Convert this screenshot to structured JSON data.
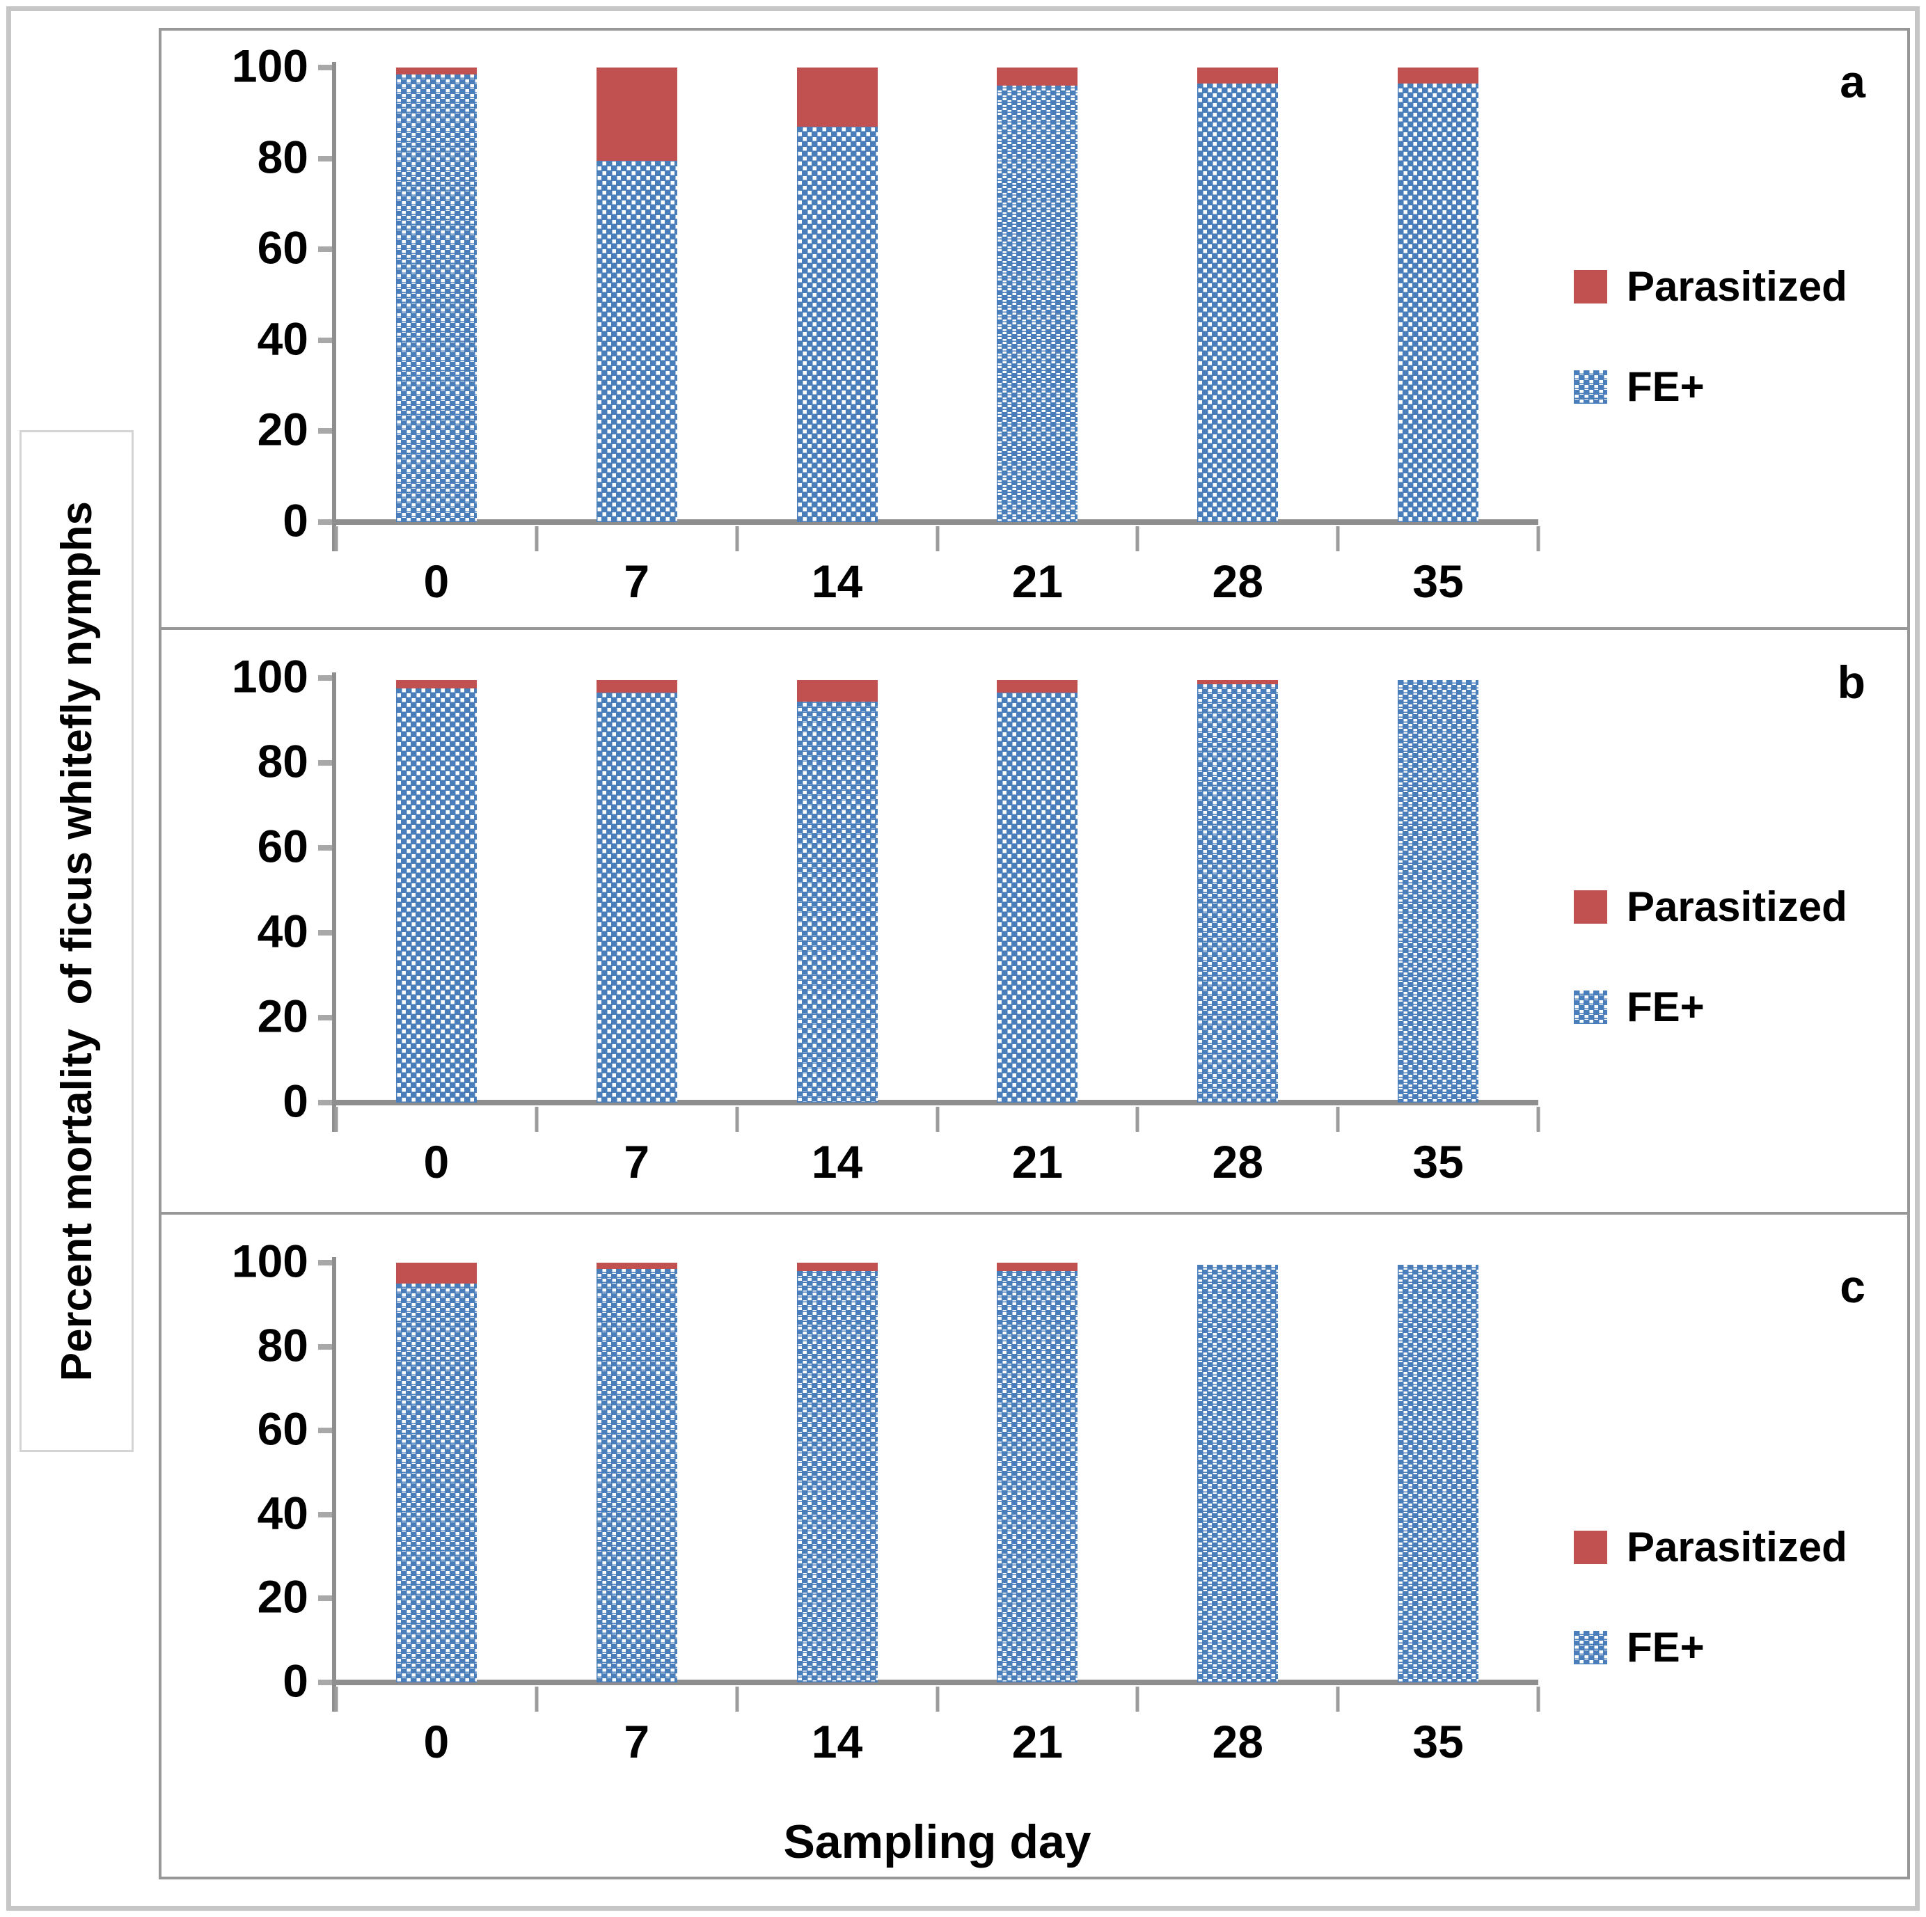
{
  "figure": {
    "y_axis_label": "Percent mortality  of ficus whitefly nymphs",
    "x_axis_label": "Sampling day",
    "legend": {
      "parasitized": "Parasitized",
      "fe": "FE+"
    },
    "colors": {
      "parasitized_red": "#c15150",
      "fe_blue": "#4a7ebb",
      "axis_gray": "#8e8e8e",
      "frame_gray": "#c6c6c6",
      "panel_border_gray": "#979797"
    }
  },
  "chart_data": [
    {
      "type": "bar",
      "stacked": true,
      "panel_label": "a",
      "categories": [
        "0",
        "7",
        "14",
        "21",
        "28",
        "35"
      ],
      "series": [
        {
          "name": "FE+",
          "values": [
            98.5,
            79.5,
            87,
            96,
            96.5,
            96.5
          ]
        },
        {
          "name": "Parasitized",
          "values": [
            1.5,
            20.5,
            13,
            4,
            3.5,
            3.5
          ]
        }
      ],
      "ylim": [
        0,
        100
      ],
      "yticks": [
        0,
        20,
        40,
        60,
        80,
        100
      ],
      "grid": false,
      "legend_position": "right"
    },
    {
      "type": "bar",
      "stacked": true,
      "panel_label": "b",
      "categories": [
        "0",
        "7",
        "14",
        "21",
        "28",
        "35"
      ],
      "series": [
        {
          "name": "FE+",
          "values": [
            97.5,
            96.5,
            94.5,
            96.5,
            98.5,
            99.5
          ]
        },
        {
          "name": "Parasitized",
          "values": [
            2,
            3,
            5,
            3,
            1,
            0
          ]
        }
      ],
      "ylim": [
        0,
        100
      ],
      "yticks": [
        0,
        20,
        40,
        60,
        80,
        100
      ],
      "grid": false,
      "legend_position": "right"
    },
    {
      "type": "bar",
      "stacked": true,
      "panel_label": "c",
      "categories": [
        "0",
        "7",
        "14",
        "21",
        "28",
        "35"
      ],
      "series": [
        {
          "name": "FE+",
          "values": [
            95,
            98.5,
            98,
            98,
            99.5,
            99.5
          ]
        },
        {
          "name": "Parasitized",
          "values": [
            5,
            1.5,
            2,
            2,
            0,
            0
          ]
        }
      ],
      "ylim": [
        0,
        100
      ],
      "yticks": [
        0,
        20,
        40,
        60,
        80,
        100
      ],
      "grid": false,
      "legend_position": "right"
    }
  ]
}
